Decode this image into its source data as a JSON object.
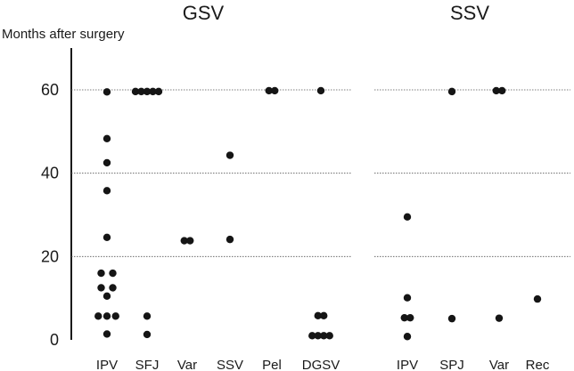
{
  "chart_data": {
    "type": "scatter",
    "ylabel": "Months after surgery",
    "ylim": [
      0,
      70
    ],
    "yticks": [
      0,
      20,
      40,
      60
    ],
    "grid_y": [
      20,
      40,
      60
    ],
    "groups": [
      {
        "title": "GSV",
        "categories": [
          {
            "label": "IPV",
            "points": [
              {
                "y": 59.5,
                "o": 0
              },
              {
                "y": 48.3,
                "o": 0
              },
              {
                "y": 42.5,
                "o": 0
              },
              {
                "y": 35.8,
                "o": 0
              },
              {
                "y": 24.6,
                "o": 0
              },
              {
                "y": 16,
                "o": -1
              },
              {
                "y": 16,
                "o": 1
              },
              {
                "y": 12.5,
                "o": -1
              },
              {
                "y": 12.5,
                "o": 1
              },
              {
                "y": 10.5,
                "o": 0
              },
              {
                "y": 5.7,
                "o": -1.5
              },
              {
                "y": 5.7,
                "o": 0
              },
              {
                "y": 5.7,
                "o": 1.5
              },
              {
                "y": 1.4,
                "o": 0
              }
            ]
          },
          {
            "label": "SFJ",
            "points": [
              {
                "y": 59.6,
                "o": -2
              },
              {
                "y": 59.6,
                "o": -1
              },
              {
                "y": 59.6,
                "o": 0
              },
              {
                "y": 59.6,
                "o": 1
              },
              {
                "y": 59.6,
                "o": 2
              },
              {
                "y": 5.7,
                "o": 0
              },
              {
                "y": 1.3,
                "o": 0
              }
            ]
          },
          {
            "label": "Var",
            "points": [
              {
                "y": 23.8,
                "o": -0.5
              },
              {
                "y": 23.8,
                "o": 0.5
              }
            ]
          },
          {
            "label": "SSV",
            "points": [
              {
                "y": 44.3,
                "o": 0
              },
              {
                "y": 24.1,
                "o": 0
              }
            ]
          },
          {
            "label": "Pel",
            "points": [
              {
                "y": 59.8,
                "o": -0.5
              },
              {
                "y": 59.8,
                "o": 0.5
              }
            ]
          },
          {
            "label": "DGSV",
            "points": [
              {
                "y": 59.8,
                "o": 0
              },
              {
                "y": 5.8,
                "o": -0.5
              },
              {
                "y": 5.8,
                "o": 0.5
              },
              {
                "y": 1,
                "o": -1.5
              },
              {
                "y": 1,
                "o": -0.5
              },
              {
                "y": 1,
                "o": 0.5
              },
              {
                "y": 1,
                "o": 1.5
              }
            ]
          }
        ]
      },
      {
        "title": "SSV",
        "categories": [
          {
            "label": "IPV",
            "points": [
              {
                "y": 29.5,
                "o": 0
              },
              {
                "y": 10.1,
                "o": 0
              },
              {
                "y": 5.3,
                "o": -0.5
              },
              {
                "y": 5.3,
                "o": 0.5
              },
              {
                "y": 0.8,
                "o": 0
              }
            ]
          },
          {
            "label": "SPJ",
            "points": [
              {
                "y": 59.6,
                "o": 0
              },
              {
                "y": 5.1,
                "o": 0
              }
            ]
          },
          {
            "label": "Var",
            "points": [
              {
                "y": 59.8,
                "o": -0.5
              },
              {
                "y": 59.8,
                "o": 0.5
              },
              {
                "y": 5.2,
                "o": 0
              }
            ]
          },
          {
            "label": "Rec",
            "points": [
              {
                "y": 9.8,
                "o": 0
              }
            ]
          }
        ]
      }
    ]
  }
}
